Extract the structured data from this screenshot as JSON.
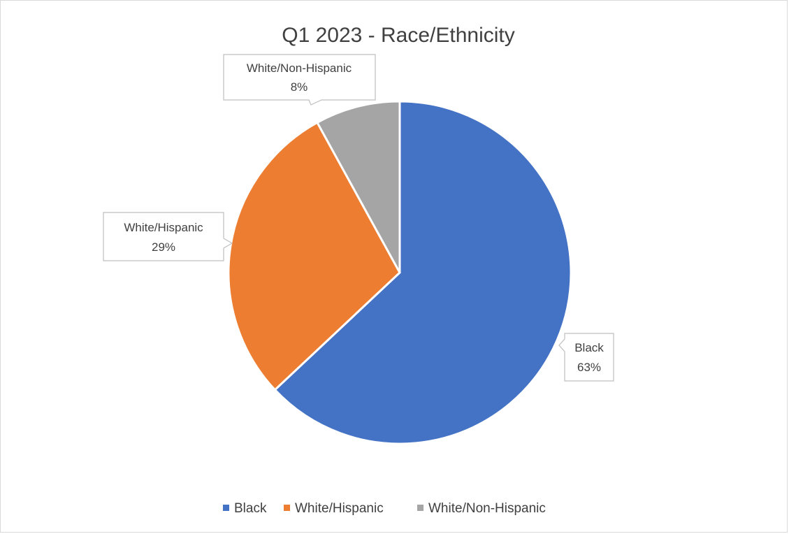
{
  "chart_data": {
    "type": "pie",
    "title": "Q1 2023 - Race/Ethnicity",
    "categories": [
      "Black",
      "White/Hispanic",
      "White/Non-Hispanic"
    ],
    "values": [
      63,
      29,
      8
    ],
    "percent_labels": [
      "63%",
      "29%",
      "8%"
    ],
    "colors": [
      "#4472C4",
      "#ED7D31",
      "#A5A5A5"
    ],
    "legend_position": "bottom"
  }
}
